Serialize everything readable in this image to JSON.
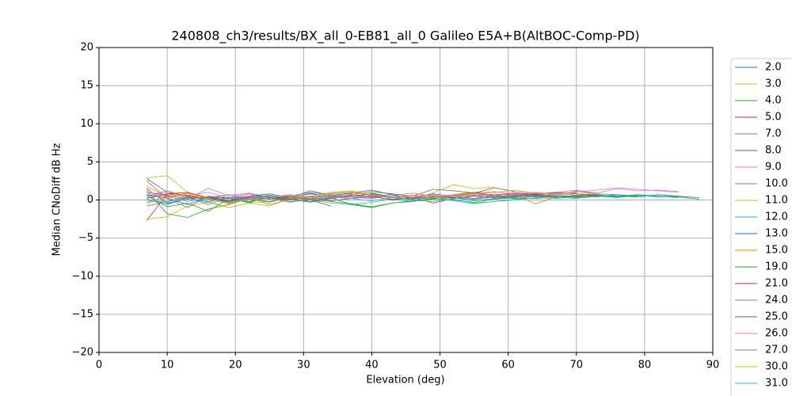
{
  "chart_data": {
    "type": "line",
    "title": "240808_ch3/results/BX_all_0-EB81_all_0 Galileo E5A+B(AltBOC-Comp-PD)",
    "xlabel": "Elevation (deg)",
    "ylabel": "Median CNoDiff dB Hz",
    "x": [
      7,
      10,
      13,
      16,
      19,
      22,
      25,
      28,
      31,
      34,
      37,
      40,
      43,
      46,
      49,
      52,
      55,
      58,
      61,
      64,
      67,
      70,
      73,
      76,
      79,
      82,
      85,
      88
    ],
    "xlim": [
      0,
      90
    ],
    "xticks": [
      0,
      10,
      20,
      30,
      40,
      50,
      60,
      70,
      80,
      90
    ],
    "ylim": [
      -20,
      20
    ],
    "yticks": [
      {
        "value": -20,
        "label": "−20"
      },
      {
        "value": -15,
        "label": "−15"
      },
      {
        "value": -10,
        "label": "−10"
      },
      {
        "value": -5,
        "label": "−5"
      },
      0,
      5,
      10,
      15,
      20
    ],
    "grid": true,
    "legend": "right",
    "series": [
      {
        "name": "2.0",
        "color": "#1f77b4",
        "values": [
          1.5,
          -0.5,
          0.3,
          0.2,
          -0.2,
          0.4,
          0.6,
          0.3,
          0.8,
          0.5,
          0.2,
          0.9,
          0.4,
          0.1,
          0.3,
          0.5,
          0.2,
          0.6,
          0.4,
          0.7,
          0.5,
          0.3,
          0.6,
          0.5,
          0.4,
          0.7,
          0.5,
          0.3
        ]
      },
      {
        "name": "3.0",
        "color": "#bcbd22",
        "values": [
          -2.5,
          -2.2,
          -0.8,
          -0.3,
          -1.0,
          -0.4,
          -0.2,
          0.3,
          0.5,
          0.2,
          null,
          null,
          null,
          null,
          null,
          null,
          null,
          null,
          null,
          null,
          null,
          null,
          null,
          null,
          null,
          null,
          null,
          null
        ]
      },
      {
        "name": "4.0",
        "color": "#2ca02c",
        "values": [
          1.2,
          -1.8,
          -2.3,
          -1.2,
          -0.6,
          0.2,
          -0.3,
          0.4,
          0.1,
          -0.2,
          -0.5,
          -0.9,
          -0.4,
          -0.2,
          0.1,
          0.3,
          -0.1,
          0.2,
          0.4,
          0.6,
          0.3,
          0.5,
          0.7,
          0.4,
          0.6,
          0.5,
          null,
          null
        ]
      },
      {
        "name": "5.0",
        "color": "#d62728",
        "values": [
          -2.7,
          0.8,
          0.5,
          0.2,
          -0.3,
          0.1,
          0.3,
          -0.2,
          0.0,
          -0.8,
          null,
          null,
          null,
          null,
          null,
          null,
          null,
          null,
          null,
          null,
          null,
          null,
          null,
          null,
          null,
          null,
          null,
          null
        ]
      },
      {
        "name": "7.0",
        "color": "#9467bd",
        "values": [
          0.5,
          1.2,
          0.4,
          -0.6,
          0.3,
          0.8,
          0.2,
          0.5,
          1.0,
          0.7,
          0.4,
          0.2,
          0.6,
          0.3,
          0.8,
          0.5,
          0.9,
          0.4,
          0.7,
          1.0,
          0.6,
          1.2,
          0.8,
          0.7,
          null,
          null,
          null,
          null
        ]
      },
      {
        "name": "8.0",
        "color": "#8c564b",
        "values": [
          2.8,
          1.0,
          0.6,
          0.1,
          0.4,
          -0.2,
          0.3,
          0.0,
          0.5,
          0.2,
          0.7,
          1.1,
          0.8,
          0.5,
          1.4,
          1.2,
          0.9,
          1.6,
          1.1,
          0.8,
          1.0,
          0.9,
          null,
          null,
          null,
          null,
          null,
          null
        ]
      },
      {
        "name": "9.0",
        "color": "#e377c2",
        "values": [
          0.3,
          1.0,
          0.2,
          1.5,
          0.6,
          0.9,
          0.4,
          0.7,
          0.2,
          0.5,
          0.8,
          0.3,
          0.6,
          0.9,
          0.5,
          0.4,
          0.7,
          0.6,
          1.1,
          0.8,
          1.0,
          1.3,
          0.9,
          1.5,
          1.2,
          1.3,
          1.1,
          null
        ]
      },
      {
        "name": "10.0",
        "color": "#7f7f7f",
        "values": [
          2.5,
          0.2,
          -1.0,
          0.5,
          0.3,
          -0.4,
          0.6,
          0.2,
          0.9,
          0.4,
          0.6,
          0.3,
          0.8,
          0.5,
          0.7,
          0.3,
          0.9,
          0.6,
          0.8,
          0.5,
          0.7,
          0.4,
          0.6,
          null,
          null,
          null,
          null,
          null
        ]
      },
      {
        "name": "11.0",
        "color": "#bcbd22",
        "values": [
          2.9,
          3.2,
          1.0,
          -0.2,
          -1.0,
          -0.4,
          -0.8,
          0.2,
          0.5,
          1.0,
          1.2,
          0.7,
          0.4,
          0.2,
          0.9,
          2.0,
          1.5,
          1.7,
          null,
          null,
          null,
          null,
          null,
          null,
          null,
          null,
          null,
          null
        ]
      },
      {
        "name": "12.0",
        "color": "#17becf",
        "values": [
          0.0,
          -0.6,
          0.2,
          -0.3,
          0.4,
          0.1,
          -0.2,
          0.3,
          0.0,
          -0.4,
          -0.6,
          -0.3,
          0.1,
          -0.2,
          0.2,
          -0.1,
          -0.5,
          -0.2,
          0.0,
          0.3,
          0.2,
          0.4,
          0.5,
          0.3,
          0.6,
          0.4,
          0.5,
          null
        ]
      },
      {
        "name": "13.0",
        "color": "#1f77b4",
        "values": [
          0.7,
          0.3,
          -0.6,
          0.4,
          -0.1,
          0.5,
          0.8,
          0.3,
          1.2,
          0.6,
          0.9,
          1.3,
          0.7,
          0.2,
          0.5,
          0.3,
          0.1,
          0.4,
          0.2,
          0.5,
          0.3,
          0.6,
          0.4,
          0.7,
          0.5,
          null,
          null,
          null
        ]
      },
      {
        "name": "15.0",
        "color": "#ff7f0e",
        "values": [
          1.8,
          0.4,
          0.9,
          0.2,
          -0.5,
          0.3,
          -0.6,
          0.1,
          0.4,
          0.8,
          1.0,
          0.6,
          0.3,
          0.5,
          0.2,
          0.6,
          0.9,
          1.1,
          0.7,
          -0.5,
          0.4,
          0.6,
          0.5,
          null,
          null,
          null,
          null,
          null
        ]
      },
      {
        "name": "19.0",
        "color": "#2ca02c",
        "values": [
          0.6,
          -0.9,
          -0.4,
          -1.5,
          0.2,
          -0.3,
          0.5,
          0.1,
          -0.2,
          0.3,
          -0.6,
          -1.0,
          -0.4,
          -0.1,
          0.2,
          0.0,
          -0.3,
          0.1,
          0.3,
          0.2,
          0.5,
          0.4,
          0.6,
          0.5,
          0.7,
          0.5,
          0.4,
          0.1
        ]
      },
      {
        "name": "21.0",
        "color": "#d62728",
        "values": [
          0.2,
          0.8,
          1.0,
          0.3,
          -0.2,
          0.4,
          0.1,
          0.6,
          0.3,
          -0.1,
          0.2,
          0.5,
          0.0,
          0.3,
          -0.4,
          0.2,
          0.5,
          0.3,
          0.6,
          0.8,
          0.4,
          null,
          null,
          null,
          null,
          null,
          null,
          null
        ]
      },
      {
        "name": "24.0",
        "color": "#9467bd",
        "values": [
          -0.3,
          0.5,
          -0.2,
          0.3,
          0.7,
          0.2,
          0.4,
          0.0,
          0.3,
          0.6,
          0.2,
          0.4,
          0.1,
          0.3,
          0.5,
          0.2,
          0.6,
          0.3,
          0.5,
          0.7,
          0.9,
          0.6,
          0.8,
          null,
          null,
          null,
          null,
          null
        ]
      },
      {
        "name": "25.0",
        "color": "#8c564b",
        "values": [
          1.0,
          0.6,
          0.1,
          0.4,
          0.2,
          0.5,
          0.3,
          0.1,
          -0.3,
          0.2,
          0.5,
          0.8,
          0.4,
          0.6,
          0.3,
          0.7,
          1.0,
          0.6,
          0.9,
          0.7,
          1.0,
          0.8,
          0.6,
          null,
          null,
          null,
          null,
          null
        ]
      },
      {
        "name": "26.0",
        "color": "#e377c2",
        "values": [
          1.4,
          -0.3,
          0.6,
          1.0,
          0.3,
          0.5,
          0.2,
          0.7,
          0.4,
          0.6,
          0.2,
          0.5,
          0.3,
          0.6,
          0.4,
          0.7,
          0.5,
          0.8,
          0.6,
          1.0,
          0.8,
          1.1,
          1.3,
          1.6,
          1.4,
          1.2,
          1.0,
          null
        ]
      },
      {
        "name": "27.0",
        "color": "#7f7f7f",
        "values": [
          -0.8,
          -0.2,
          0.4,
          0.1,
          -0.3,
          0.2,
          0.5,
          0.3,
          0.0,
          0.4,
          0.2,
          0.6,
          0.3,
          0.1,
          0.4,
          0.2,
          0.5,
          0.3,
          0.6,
          0.4,
          0.5,
          null,
          null,
          null,
          null,
          null,
          null,
          null
        ]
      },
      {
        "name": "30.0",
        "color": "#bcbd22",
        "values": [
          -0.5,
          0.3,
          0.8,
          0.2,
          -0.4,
          0.1,
          0.4,
          0.6,
          0.3,
          0.9,
          1.1,
          0.7,
          0.4,
          0.6,
          0.3,
          0.5,
          0.8,
          1.0,
          1.3,
          0.9,
          0.7,
          1.0,
          0.8,
          null,
          null,
          null,
          null,
          null
        ]
      },
      {
        "name": "31.0",
        "color": "#17becf",
        "values": [
          0.1,
          -0.4,
          0.2,
          -0.2,
          0.3,
          0.0,
          0.2,
          -0.3,
          0.1,
          0.4,
          0.2,
          -0.1,
          0.3,
          0.0,
          -0.2,
          0.1,
          -0.4,
          -0.2,
          0.1,
          0.3,
          0.4,
          0.2,
          0.5,
          0.4,
          0.6,
          0.5,
          0.3,
          null
        ]
      }
    ]
  }
}
